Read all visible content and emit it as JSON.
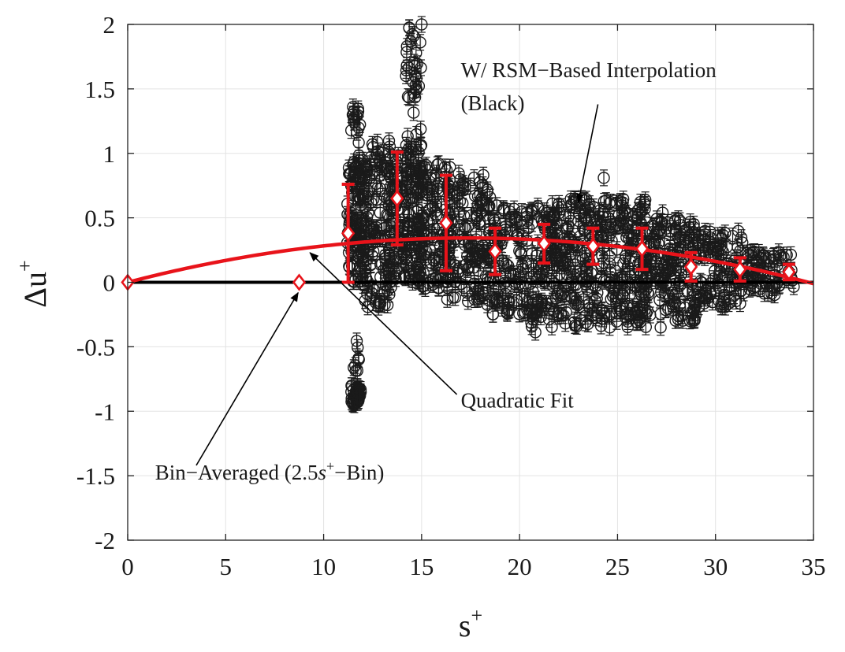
{
  "chart_data": {
    "type": "scatter",
    "xlabel": "s",
    "xlabel_sup": "+",
    "ylabel": "Δu",
    "ylabel_sup": "+",
    "xlim": [
      0,
      35
    ],
    "ylim": [
      -2,
      2
    ],
    "xticks": [
      0,
      5,
      10,
      15,
      20,
      25,
      30,
      35
    ],
    "xtick_labels": [
      "0",
      "5",
      "10",
      "15",
      "20",
      "25",
      "30",
      "35"
    ],
    "yticks": [
      -2,
      -1.5,
      -1,
      -0.5,
      0,
      0.5,
      1,
      1.5,
      2
    ],
    "ytick_labels": [
      "-2",
      "-1.5",
      "-1",
      "-0.5",
      "0",
      "0.5",
      "1",
      "1.5",
      "2"
    ],
    "grid": true,
    "colors": {
      "scatter": "#1a1a1a",
      "fit": "#e8131a",
      "bin": "#e8131a",
      "zero_line": "#000000"
    },
    "zero_line": {
      "y": 0
    },
    "scatter_clusters": [
      {
        "x": [
          11.2,
          12.2
        ],
        "y": [
          0.0,
          0.95
        ],
        "n": 110
      },
      {
        "x": [
          11.4,
          11.9
        ],
        "y": [
          0.85,
          1.35
        ],
        "n": 18
      },
      {
        "x": [
          11.4,
          11.9
        ],
        "y": [
          -0.95,
          -0.8
        ],
        "n": 40
      },
      {
        "x": [
          11.5,
          11.8
        ],
        "y": [
          -0.7,
          -0.45
        ],
        "n": 8
      },
      {
        "x": [
          12.0,
          13.5
        ],
        "y": [
          -0.2,
          1.1
        ],
        "n": 120
      },
      {
        "x": [
          13.3,
          15.0
        ],
        "y": [
          0.0,
          1.1
        ],
        "n": 170
      },
      {
        "x": [
          14.2,
          15.0
        ],
        "y": [
          1.1,
          2.0
        ],
        "n": 30
      },
      {
        "x": [
          14.8,
          16.5
        ],
        "y": [
          -0.05,
          0.95
        ],
        "n": 130
      },
      {
        "x": [
          16.3,
          18.5
        ],
        "y": [
          -0.15,
          0.85
        ],
        "n": 130
      },
      {
        "x": [
          18.3,
          21.5
        ],
        "y": [
          -0.25,
          0.6
        ],
        "n": 160
      },
      {
        "x": [
          20.5,
          21.2
        ],
        "y": [
          -0.42,
          -0.1
        ],
        "n": 14
      },
      {
        "x": [
          21.5,
          24.0
        ],
        "y": [
          -0.35,
          0.65
        ],
        "n": 190
      },
      {
        "x": [
          24.0,
          26.5
        ],
        "y": [
          -0.35,
          0.65
        ],
        "n": 180
      },
      {
        "x": [
          26.5,
          29.0
        ],
        "y": [
          -0.3,
          0.5
        ],
        "n": 150
      },
      {
        "x": [
          29.0,
          31.5
        ],
        "y": [
          -0.2,
          0.4
        ],
        "n": 110
      },
      {
        "x": [
          31.5,
          34.0
        ],
        "y": [
          -0.1,
          0.25
        ],
        "n": 70
      }
    ],
    "scatter_outliers": [
      {
        "x": 24.3,
        "y": 0.81
      },
      {
        "x": 27.2,
        "y": -0.35
      },
      {
        "x": 28.7,
        "y": -0.3
      },
      {
        "x": 24.6,
        "y": -0.35
      },
      {
        "x": 27.3,
        "y": 0.54
      },
      {
        "x": 15.0,
        "y": 2.0
      },
      {
        "x": 14.6,
        "y": 1.91
      },
      {
        "x": 14.3,
        "y": 1.44
      },
      {
        "x": 11.5,
        "y": 1.36
      }
    ],
    "bin_averaged": {
      "name": "Bin−Averaged (2.5s+−Bin)",
      "x": [
        0,
        8.75,
        11.25,
        13.75,
        16.25,
        18.75,
        21.25,
        23.75,
        26.25,
        28.75,
        31.25,
        33.75
      ],
      "y": [
        0,
        0,
        0.38,
        0.65,
        0.46,
        0.24,
        0.3,
        0.28,
        0.26,
        0.12,
        0.1,
        0.08
      ],
      "err": [
        0,
        0,
        0.38,
        0.36,
        0.37,
        0.18,
        0.15,
        0.14,
        0.16,
        0.11,
        0.09,
        0.06
      ]
    },
    "quadratic_fit": {
      "name": "Quadratic Fit",
      "a": -0.00114,
      "b": 0.0396,
      "c": 0.0,
      "x_range": [
        0,
        35
      ]
    },
    "annotations": [
      {
        "text": "W/ RSM−Based Interpolation",
        "line2": "(Black)",
        "x": 17.0,
        "y": 1.59,
        "arrow_from": [
          24.0,
          1.38
        ],
        "arrow_to": [
          23.0,
          0.62
        ]
      },
      {
        "text": "Quadratic Fit",
        "x": 17.0,
        "y": -0.97,
        "arrow_from": [
          16.8,
          -0.87
        ],
        "arrow_to": [
          9.3,
          0.23
        ]
      },
      {
        "text_pre": "Bin−Averaged (2.5",
        "text_italic": "s",
        "text_sup": "+",
        "text_post": "−Bin)",
        "x": 1.4,
        "y": -1.53,
        "arrow_from": [
          3.5,
          -1.42
        ],
        "arrow_to": [
          8.7,
          -0.08
        ]
      }
    ]
  }
}
